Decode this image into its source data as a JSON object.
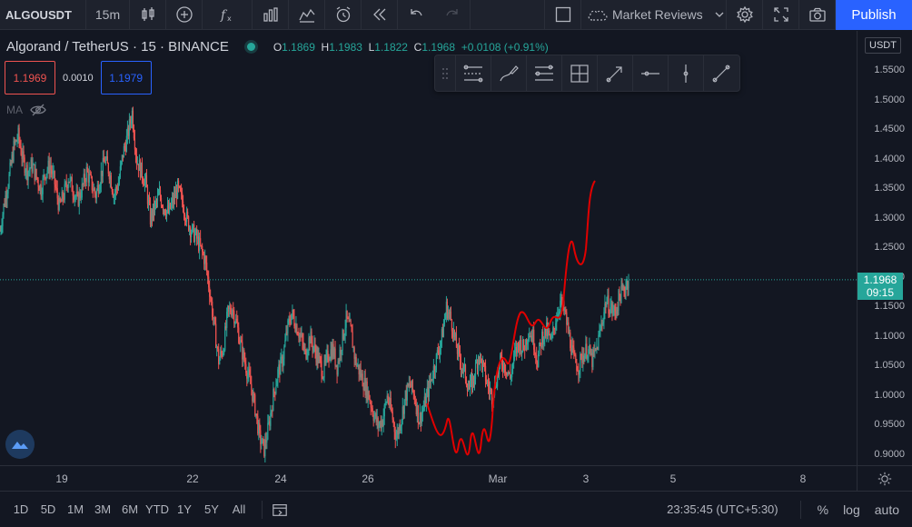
{
  "toolbar": {
    "symbol": "ALGOUSDT",
    "interval": "15m",
    "market_reviews_label": "Market Reviews",
    "publish_label": "Publish",
    "icons": [
      "candles-icon",
      "add-icon",
      "indicators-icon",
      "bars-icon",
      "compare-icon",
      "alert-icon",
      "replay-icon",
      "undo-icon",
      "redo-icon",
      "layout-icon",
      "cloud-icon",
      "gear-icon",
      "fullscreen-icon",
      "camera-icon"
    ]
  },
  "legend": {
    "title": "Algorand / TetherUS · 15 · BINANCE",
    "open_label": "O",
    "open": "1.1869",
    "high_label": "H",
    "high": "1.1983",
    "low_label": "L",
    "low": "1.1822",
    "close_label": "C",
    "close": "1.1968",
    "change": "+0.0108 (+0.91%)"
  },
  "trade": {
    "sell": "1.1969",
    "spread": "0.0010",
    "buy": "1.1979"
  },
  "indicator": {
    "label": "MA"
  },
  "price_axis": {
    "currency": "USDT",
    "ticks": [
      "1.5500",
      "1.5000",
      "1.4500",
      "1.4000",
      "1.3500",
      "1.3000",
      "1.2500",
      "1.2000",
      "1.1500",
      "1.1000",
      "1.0500",
      "1.0000",
      "0.9500",
      "0.9000"
    ],
    "last_price": "1.1968",
    "countdown": "09:15"
  },
  "time_axis": {
    "ticks": [
      "19",
      "22",
      "24",
      "26",
      "Mar",
      "3",
      "5",
      "8"
    ]
  },
  "bottom": {
    "ranges": [
      "1D",
      "5D",
      "1M",
      "3M",
      "6M",
      "YTD",
      "1Y",
      "5Y",
      "All"
    ],
    "clock": "23:35:45 (UTC+5:30)",
    "percent": "%",
    "log": "log",
    "auto": "auto"
  },
  "colors": {
    "up": "#26a69a",
    "down": "#ef5350",
    "drawing": "#e00000",
    "accent": "#2962ff"
  },
  "chart_data": {
    "type": "candlestick",
    "ylim": [
      0.875,
      1.575
    ],
    "close": [
      1.28,
      1.33,
      1.37,
      1.42,
      1.44,
      1.4,
      1.38,
      1.39,
      1.37,
      1.35,
      1.38,
      1.39,
      1.36,
      1.32,
      1.34,
      1.37,
      1.35,
      1.33,
      1.35,
      1.38,
      1.36,
      1.34,
      1.37,
      1.4,
      1.38,
      1.34,
      1.36,
      1.41,
      1.44,
      1.48,
      1.4,
      1.38,
      1.36,
      1.3,
      1.32,
      1.34,
      1.32,
      1.31,
      1.33,
      1.35,
      1.33,
      1.3,
      1.28,
      1.27,
      1.25,
      1.23,
      1.18,
      1.12,
      1.06,
      1.08,
      1.14,
      1.15,
      1.12,
      1.08,
      1.05,
      1.02,
      0.98,
      0.93,
      0.91,
      0.95,
      1.0,
      1.04,
      1.06,
      1.11,
      1.14,
      1.12,
      1.1,
      1.07,
      1.1,
      1.08,
      1.06,
      1.04,
      1.07,
      1.08,
      1.05,
      1.09,
      1.13,
      1.11,
      1.06,
      1.04,
      1.02,
      1.0,
      0.97,
      0.95,
      0.96,
      1.0,
      0.97,
      0.93,
      0.96,
      1.0,
      1.02,
      1.0,
      0.96,
      0.98,
      1.01,
      1.04,
      1.07,
      1.1,
      1.15,
      1.13,
      1.09,
      1.06,
      1.04,
      1.01,
      1.03,
      1.07,
      1.05,
      1.02,
      1.0,
      1.03,
      1.06,
      1.05,
      1.03,
      1.07,
      1.09,
      1.08,
      1.11,
      1.1,
      1.06,
      1.1,
      1.11,
      1.09,
      1.13,
      1.16,
      1.14,
      1.1,
      1.06,
      1.05,
      1.07,
      1.08,
      1.06,
      1.08,
      1.12,
      1.16,
      1.15,
      1.14,
      1.17,
      1.18,
      1.2
    ],
    "drawing": {
      "type": "freehand",
      "color": "#e00000"
    }
  }
}
